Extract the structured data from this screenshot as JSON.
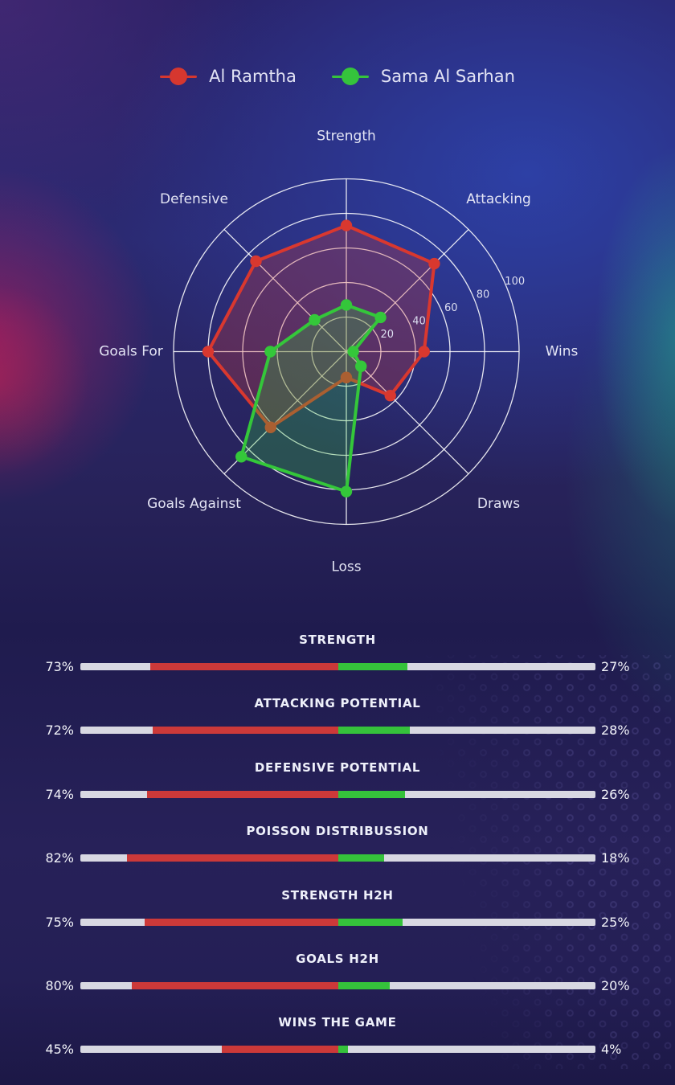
{
  "legend": {
    "items": [
      {
        "label": "Al Ramtha",
        "color": "#d6372f"
      },
      {
        "label": "Sama Al Sarhan",
        "color": "#35c43c"
      }
    ]
  },
  "chart_data": [
    {
      "type": "radar",
      "axes": [
        "Strength",
        "Attacking",
        "Wins",
        "Draws",
        "Loss",
        "Goals Against",
        "Goals For",
        "Defensive"
      ],
      "ring_ticks": [
        "20",
        "40",
        "60",
        "80",
        "100"
      ],
      "max": 100,
      "grid": "circular, 5 rings, 8 spokes, white lines",
      "series": [
        {
          "name": "Al Ramtha",
          "color": "#d9382f",
          "values": [
            73,
            72,
            45,
            36,
            15,
            62,
            80,
            74
          ]
        },
        {
          "name": "Sama Al Sarhan",
          "color": "#34c73a",
          "values": [
            27,
            28,
            4,
            12,
            81,
            86,
            44,
            26
          ]
        }
      ]
    },
    {
      "type": "bar",
      "title": "head to head percentage bars (red = Al Ramtha from center leftward, green = Sama Al Sarhan from center rightward)",
      "left_color": "#cc3939",
      "right_color": "#35c23b",
      "track_color": "#d8d8e2",
      "rows": [
        {
          "title": "STRENGTH",
          "left_label": "73%",
          "right_label": "27%",
          "left_value": 73,
          "right_value": 27
        },
        {
          "title": "ATTACKING POTENTIAL",
          "left_label": "72%",
          "right_label": "28%",
          "left_value": 72,
          "right_value": 28
        },
        {
          "title": "DEFENSIVE POTENTIAL",
          "left_label": "74%",
          "right_label": "26%",
          "left_value": 74,
          "right_value": 26
        },
        {
          "title": "POISSON DISTRIBUSSION",
          "left_label": "82%",
          "right_label": "18%",
          "left_value": 82,
          "right_value": 18
        },
        {
          "title": "STRENGTH H2H",
          "left_label": "75%",
          "right_label": "25%",
          "left_value": 75,
          "right_value": 25
        },
        {
          "title": "GOALS H2H",
          "left_label": "80%",
          "right_label": "20%",
          "left_value": 80,
          "right_value": 20
        },
        {
          "title": "WINS THE GAME",
          "left_label": "45%",
          "right_label": "4%",
          "left_value": 45,
          "right_value": 4
        }
      ]
    }
  ]
}
